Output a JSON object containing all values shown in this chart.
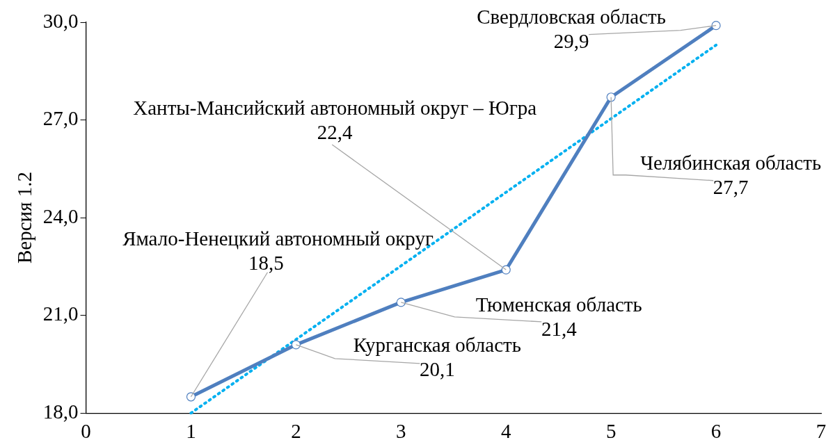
{
  "chart_data": {
    "type": "line",
    "ylabel": "Версия 1.2",
    "x": [
      1,
      2,
      3,
      4,
      5,
      6
    ],
    "series": [
      {
        "color": "#4f7fbf",
        "values": [
          18.5,
          20.1,
          21.4,
          22.4,
          27.7,
          29.9
        ],
        "value_labels": [
          "18,5",
          "20,1",
          "21,4",
          "22,4",
          "27,7",
          "29,9"
        ],
        "marker": "circle",
        "line_style": "solid"
      },
      {
        "type": "line",
        "x": [
          1,
          6
        ],
        "color": "#00b0f0",
        "values": [
          18.0,
          29.3
        ],
        "marker": "none",
        "line_style": "dotted"
      }
    ],
    "annotations": [
      {
        "text": "Ямало-Ненецкий автономный округ",
        "x": 1,
        "y": 18.5
      },
      {
        "text": "Курганская область",
        "x": 2,
        "y": 20.1
      },
      {
        "text": "Тюменская область",
        "x": 3,
        "y": 21.4
      },
      {
        "text": "Ханты-Мансийский автономный округ – Югра",
        "x": 4,
        "y": 22.4
      },
      {
        "text": "Челябинская область",
        "x": 5,
        "y": 27.7
      },
      {
        "text": "Свердловская область",
        "x": 6,
        "y": 29.9
      }
    ],
    "xlim": [
      0,
      7
    ],
    "xticks": [
      0,
      1,
      2,
      3,
      4,
      5,
      6,
      7
    ],
    "ylim": [
      18,
      30
    ],
    "yticks": [
      {
        "value": 18,
        "label": "18,0"
      },
      {
        "value": 21,
        "label": "21,0"
      },
      {
        "value": 24,
        "label": "24,0"
      },
      {
        "value": 27,
        "label": "27,0"
      },
      {
        "value": 30,
        "label": "30,0"
      }
    ],
    "grid": false,
    "legend": false
  }
}
